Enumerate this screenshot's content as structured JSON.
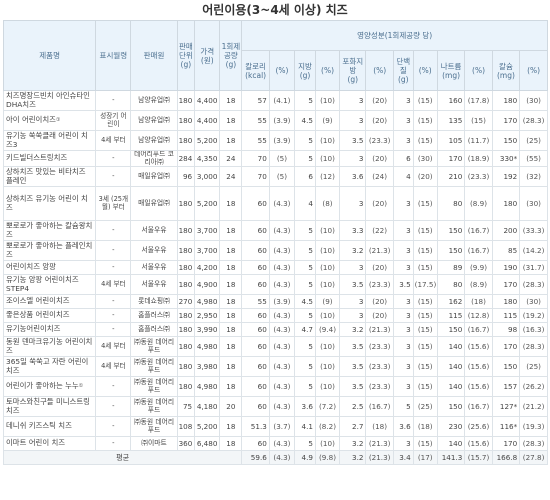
{
  "title": "어린이용(3~4세 이상) 치즈",
  "headers": {
    "name": "제품명",
    "label": "표시월령",
    "seller": "판매원",
    "unit": "판매단위(g)",
    "price": "가격(원)",
    "serving": "1회제공량(g)",
    "nutrition_group": "영양성분(1회제공량 당)",
    "nutrients": [
      {
        "name": "칼로리",
        "unit": "(kcal)",
        "pct": "(%)"
      },
      {
        "name": "지방",
        "unit": "(g)",
        "pct": "(%)"
      },
      {
        "name": "포화지방",
        "unit": "(g)",
        "pct": "(%)"
      },
      {
        "name": "단백질",
        "unit": "(g)",
        "pct": "(%)"
      },
      {
        "name": "나트륨",
        "unit": "(mg)",
        "pct": "(%)"
      },
      {
        "name": "칼슘",
        "unit": "(mg)",
        "pct": "(%)"
      }
    ]
  },
  "rows": [
    {
      "name": "치즈명장드빈치 아인슈타인 DHA치즈",
      "label": "-",
      "seller": "남양유업㈜",
      "unit": "180",
      "price": "4,400",
      "serving": "18",
      "cal": "57",
      "cal_pct": "(4.1)",
      "fat": "5",
      "fat_pct": "(10)",
      "sat": "3",
      "sat_pct": "(20)",
      "pro": "3",
      "pro_pct": "(15)",
      "na": "160",
      "na_pct": "(17.8)",
      "ca": "180",
      "ca_pct": "(30)"
    },
    {
      "name": "아이 어린이치즈",
      "mark": "①",
      "label": "성장기 어린이",
      "seller": "남양유업㈜",
      "unit": "180",
      "price": "4,400",
      "serving": "18",
      "cal": "55",
      "cal_pct": "(3.9)",
      "fat": "4.5",
      "fat_pct": "(9)",
      "sat": "3",
      "sat_pct": "(20)",
      "pro": "3",
      "pro_pct": "(15)",
      "na": "135",
      "na_pct": "(15)",
      "ca": "170",
      "ca_pct": "(28.3)"
    },
    {
      "name": "유기농 쑥쑥클래 어린이 치즈3",
      "label": "4세 부터",
      "seller": "남양유업㈜",
      "unit": "180",
      "price": "5,200",
      "serving": "18",
      "cal": "55",
      "cal_pct": "(3.9)",
      "fat": "5",
      "fat_pct": "(10)",
      "sat": "3.5",
      "sat_pct": "(23.3)",
      "pro": "3",
      "pro_pct": "(15)",
      "na": "105",
      "na_pct": "(11.7)",
      "ca": "150",
      "ca_pct": "(25)"
    },
    {
      "name": "키드빌더스트링치즈",
      "label": "-",
      "seller": "데어리푸드 코리아㈜",
      "unit": "284",
      "price": "4,350",
      "serving": "24",
      "cal": "70",
      "cal_pct": "(5)",
      "fat": "5",
      "fat_pct": "(10)",
      "sat": "3",
      "sat_pct": "(20)",
      "pro": "6",
      "pro_pct": "(30)",
      "na": "170",
      "na_pct": "(18.9)",
      "ca": "330*",
      "ca_pct": "(55)"
    },
    {
      "name": "상하치즈 맛있는 비타치즈 플레인",
      "label": "-",
      "seller": "매일유업㈜",
      "unit": "96",
      "price": "3,000",
      "serving": "24",
      "cal": "70",
      "cal_pct": "(5)",
      "fat": "6",
      "fat_pct": "(12)",
      "sat": "3.6",
      "sat_pct": "(24)",
      "pro": "4",
      "pro_pct": "(20)",
      "na": "210",
      "na_pct": "(23.3)",
      "ca": "192",
      "ca_pct": "(32)"
    },
    {
      "name": "상하치즈 유기농 어린이 치즈",
      "label": "3세 (25개월) 부터",
      "seller": "매일유업㈜",
      "unit": "180",
      "price": "5,200",
      "serving": "18",
      "cal": "60",
      "cal_pct": "(4.3)",
      "fat": "4",
      "fat_pct": "(8)",
      "sat": "3",
      "sat_pct": "(20)",
      "pro": "3",
      "pro_pct": "(15)",
      "na": "80",
      "na_pct": "(8.9)",
      "ca": "180",
      "ca_pct": "(30)"
    },
    {
      "name": "뽀로로가 좋아하는 칼슘왕치즈",
      "label": "-",
      "seller": "서울우유",
      "unit": "180",
      "price": "3,700",
      "serving": "18",
      "cal": "60",
      "cal_pct": "(4.3)",
      "fat": "5",
      "fat_pct": "(10)",
      "sat": "3.3",
      "sat_pct": "(22)",
      "pro": "3",
      "pro_pct": "(15)",
      "na": "150",
      "na_pct": "(16.7)",
      "ca": "200",
      "ca_pct": "(33.3)"
    },
    {
      "name": "뽀로로가 좋아하는 플레인치즈",
      "label": "-",
      "seller": "서울우유",
      "unit": "180",
      "price": "3,700",
      "serving": "18",
      "cal": "60",
      "cal_pct": "(4.3)",
      "fat": "5",
      "fat_pct": "(10)",
      "sat": "3.2",
      "sat_pct": "(21.3)",
      "pro": "3",
      "pro_pct": "(15)",
      "na": "150",
      "na_pct": "(16.7)",
      "ca": "85",
      "ca_pct": "(14.2)"
    },
    {
      "name": "어린이치즈 앙팡",
      "label": "-",
      "seller": "서울우유",
      "unit": "180",
      "price": "4,200",
      "serving": "18",
      "cal": "60",
      "cal_pct": "(4.3)",
      "fat": "5",
      "fat_pct": "(10)",
      "sat": "3",
      "sat_pct": "(20)",
      "pro": "3",
      "pro_pct": "(15)",
      "na": "89",
      "na_pct": "(9.9)",
      "ca": "190",
      "ca_pct": "(31.7)"
    },
    {
      "name": "유기농 앙팡 어린이치즈 STEP4",
      "label": "4세 부터",
      "seller": "서울우유",
      "unit": "180",
      "price": "4,900",
      "serving": "18",
      "cal": "60",
      "cal_pct": "(4.3)",
      "fat": "5",
      "fat_pct": "(10)",
      "sat": "3.5",
      "sat_pct": "(23.3)",
      "pro": "3.5",
      "pro_pct": "(17.5)",
      "na": "80",
      "na_pct": "(8.9)",
      "ca": "170",
      "ca_pct": "(28.3)"
    },
    {
      "name": "조이스엘 어린이치즈",
      "label": "-",
      "seller": "롯데쇼핑㈜",
      "unit": "270",
      "price": "4,980",
      "serving": "18",
      "cal": "55",
      "cal_pct": "(3.9)",
      "fat": "4.5",
      "fat_pct": "(9)",
      "sat": "3",
      "sat_pct": "(20)",
      "pro": "3",
      "pro_pct": "(15)",
      "na": "162",
      "na_pct": "(18)",
      "ca": "180",
      "ca_pct": "(30)"
    },
    {
      "name": "좋은상품 어린이치즈",
      "label": "-",
      "seller": "홈플러스㈜",
      "unit": "180",
      "price": "2,950",
      "serving": "18",
      "cal": "60",
      "cal_pct": "(4.3)",
      "fat": "5",
      "fat_pct": "(10)",
      "sat": "3",
      "sat_pct": "(20)",
      "pro": "3",
      "pro_pct": "(15)",
      "na": "115",
      "na_pct": "(12.8)",
      "ca": "115",
      "ca_pct": "(19.2)"
    },
    {
      "name": "유기농어린이치즈",
      "label": "-",
      "seller": "홈플러스㈜",
      "unit": "180",
      "price": "3,990",
      "serving": "18",
      "cal": "60",
      "cal_pct": "(4.3)",
      "fat": "4.7",
      "fat_pct": "(9.4)",
      "sat": "3.2",
      "sat_pct": "(21.3)",
      "pro": "3",
      "pro_pct": "(15)",
      "na": "150",
      "na_pct": "(16.7)",
      "ca": "98",
      "ca_pct": "(16.3)"
    },
    {
      "name": "동원 덴마크유기농 어린이치즈",
      "label": "4세 부터",
      "seller": "㈜동원 데어리푸드",
      "unit": "180",
      "price": "4,980",
      "serving": "18",
      "cal": "60",
      "cal_pct": "(4.3)",
      "fat": "5",
      "fat_pct": "(10)",
      "sat": "3.5",
      "sat_pct": "(23.3)",
      "pro": "3",
      "pro_pct": "(15)",
      "na": "140",
      "na_pct": "(15.6)",
      "ca": "170",
      "ca_pct": "(28.3)"
    },
    {
      "name": "365일 쑥쑥고 자란 어린이치즈",
      "label": "4세 부터",
      "seller": "㈜동원 데어리푸드",
      "unit": "180",
      "price": "3,980",
      "serving": "18",
      "cal": "60",
      "cal_pct": "(4.3)",
      "fat": "5",
      "fat_pct": "(10)",
      "sat": "3.5",
      "sat_pct": "(23.3)",
      "pro": "3",
      "pro_pct": "(15)",
      "na": "140",
      "na_pct": "(15.6)",
      "ca": "150",
      "ca_pct": "(25)"
    },
    {
      "name": "어린이가 좋아하는 누누",
      "mark": "①",
      "label": "-",
      "seller": "㈜동원 데어리푸드",
      "unit": "180",
      "price": "4,980",
      "serving": "18",
      "cal": "60",
      "cal_pct": "(4.3)",
      "fat": "5",
      "fat_pct": "(10)",
      "sat": "3.5",
      "sat_pct": "(23.3)",
      "pro": "3",
      "pro_pct": "(15)",
      "na": "140",
      "na_pct": "(15.6)",
      "ca": "157",
      "ca_pct": "(26.2)"
    },
    {
      "name": "토마스와친구들 미니스트링치즈",
      "label": "-",
      "seller": "㈜동원 데어리푸드",
      "unit": "75",
      "price": "4,180",
      "serving": "20",
      "cal": "60",
      "cal_pct": "(4.3)",
      "fat": "3.6",
      "fat_pct": "(7.2)",
      "sat": "2.5",
      "sat_pct": "(16.7)",
      "pro": "5",
      "pro_pct": "(25)",
      "na": "150",
      "na_pct": "(16.7)",
      "ca": "127*",
      "ca_pct": "(21.2)"
    },
    {
      "name": "데니쉬 키즈스틱 치즈",
      "label": "-",
      "seller": "㈜동원 데어리푸드",
      "unit": "108",
      "price": "5,200",
      "serving": "18",
      "cal": "51.3",
      "cal_pct": "(3.7)",
      "fat": "4.1",
      "fat_pct": "(8.2)",
      "sat": "2.7",
      "sat_pct": "(18)",
      "pro": "3.6",
      "pro_pct": "(18)",
      "na": "230",
      "na_pct": "(25.6)",
      "ca": "116*",
      "ca_pct": "(19.3)"
    },
    {
      "name": "이마트 어린이 치즈",
      "label": "-",
      "seller": "㈜이마트",
      "unit": "360",
      "price": "6,480",
      "serving": "18",
      "cal": "60",
      "cal_pct": "(4.3)",
      "fat": "5",
      "fat_pct": "(10)",
      "sat": "3.2",
      "sat_pct": "(21.3)",
      "pro": "3",
      "pro_pct": "(15)",
      "na": "140",
      "na_pct": "(15.6)",
      "ca": "170",
      "ca_pct": "(28.3)"
    }
  ],
  "average": {
    "label": "평균",
    "cal": "59.6",
    "cal_pct": "(4.3)",
    "fat": "4.9",
    "fat_pct": "(9.8)",
    "sat": "3.2",
    "sat_pct": "(21.3)",
    "pro": "3.4",
    "pro_pct": "(17)",
    "na": "141.3",
    "na_pct": "(15.7)",
    "ca": "166.8",
    "ca_pct": "(27.8)"
  }
}
